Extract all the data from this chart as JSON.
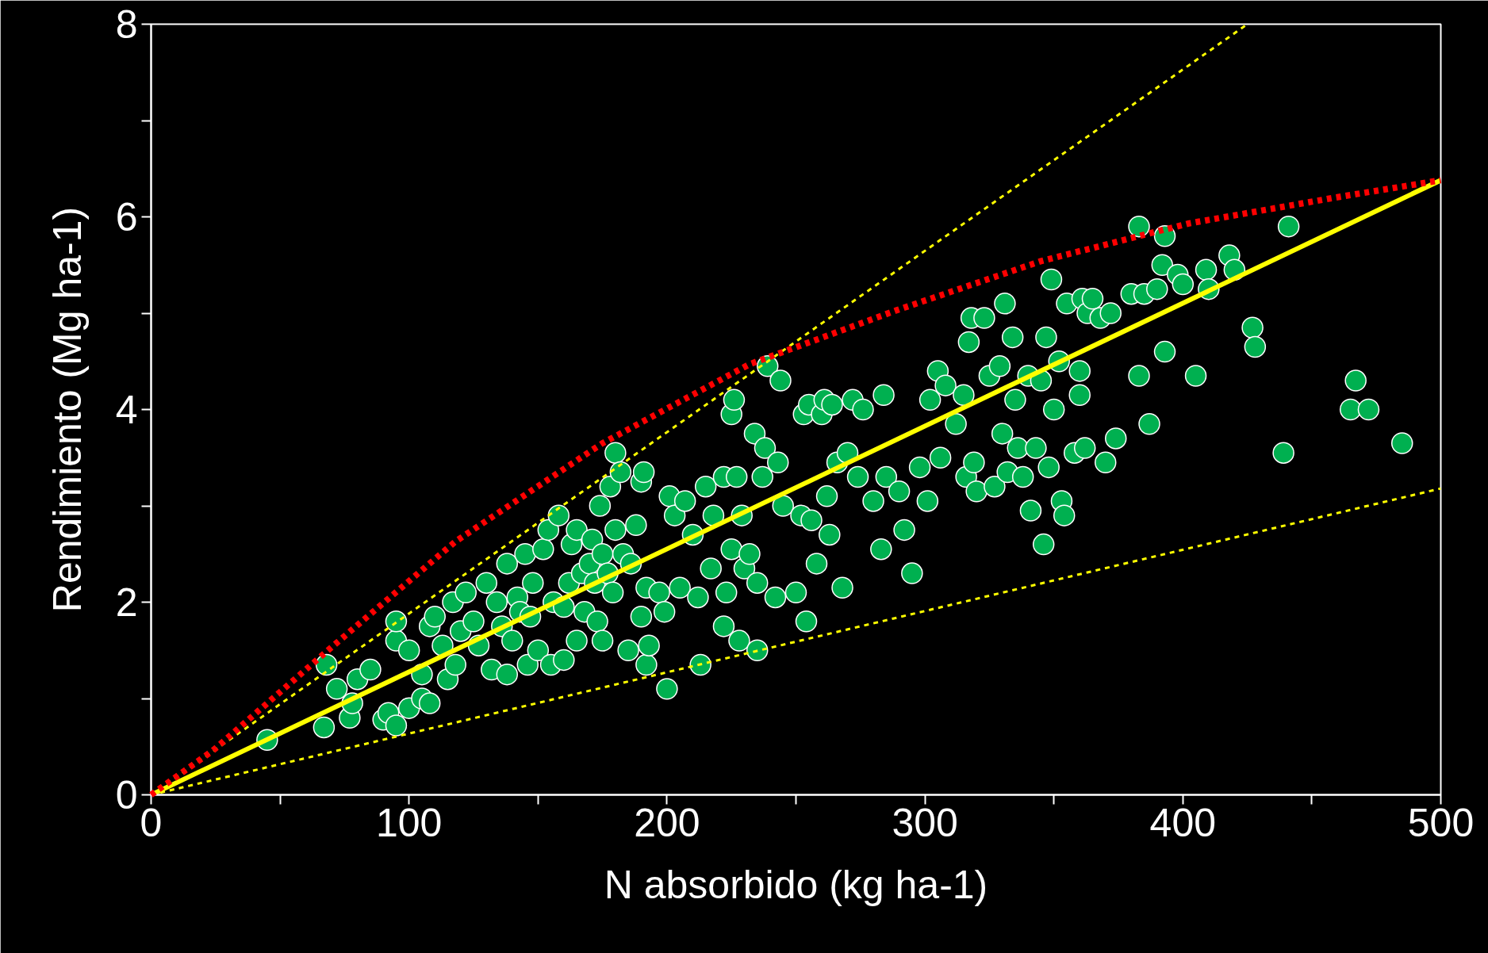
{
  "chart_data": {
    "type": "scatter",
    "xlabel": "N absorbido (kg ha-1)",
    "ylabel": "Rendimiento (Mg ha-1)",
    "xlim": [
      0,
      500
    ],
    "ylim": [
      0,
      8
    ],
    "xticks": [
      0,
      {
        "value": 50,
        "label": null
      },
      100,
      {
        "value": 150,
        "label": null
      },
      200,
      {
        "value": 250,
        "label": null
      },
      300,
      {
        "value": 350,
        "label": null
      },
      400,
      {
        "value": 450,
        "label": null
      },
      500
    ],
    "yticks": [
      0,
      {
        "value": 1,
        "label": null
      },
      2,
      {
        "value": 3,
        "label": null
      },
      4,
      {
        "value": 5,
        "label": null
      },
      6,
      {
        "value": 7,
        "label": null
      },
      8
    ],
    "grid": false,
    "series": [
      {
        "marker": "circle",
        "color": "#00b050",
        "x": [
          45,
          67,
          68,
          72,
          77,
          80,
          78,
          85,
          90,
          92,
          95,
          95,
          95,
          100,
          100,
          105,
          105,
          108,
          108,
          110,
          113,
          115,
          117,
          118,
          120,
          122,
          125,
          127,
          130,
          132,
          134,
          136,
          138,
          138,
          140,
          142,
          143,
          145,
          146,
          147,
          148,
          150,
          152,
          154,
          155,
          156,
          158,
          160,
          160,
          162,
          163,
          165,
          165,
          167,
          168,
          170,
          171,
          172,
          173,
          174,
          175,
          175,
          177,
          178,
          179,
          180,
          180,
          182,
          183,
          185,
          186,
          188,
          190,
          190,
          191,
          192,
          192,
          193,
          197,
          199,
          200,
          201,
          203,
          205,
          207,
          210,
          212,
          213,
          215,
          217,
          218,
          222,
          222,
          223,
          225,
          225,
          226,
          227,
          228,
          229,
          230,
          232,
          234,
          235,
          235,
          237,
          238,
          239,
          242,
          243,
          244,
          245,
          250,
          252,
          253,
          254,
          255,
          256,
          258,
          260,
          261,
          262,
          263,
          264,
          266,
          268,
          270,
          272,
          274,
          276,
          280,
          283,
          284,
          285,
          290,
          292,
          295,
          298,
          301,
          302,
          305,
          306,
          308,
          312,
          315,
          316,
          317,
          318,
          319,
          320,
          323,
          325,
          327,
          329,
          330,
          331,
          332,
          334,
          335,
          336,
          338,
          340,
          341,
          343,
          345,
          346,
          347,
          348,
          349,
          350,
          352,
          353,
          354,
          355,
          358,
          360,
          360,
          361,
          362,
          363,
          365,
          368,
          370,
          372,
          374,
          380,
          383,
          383,
          385,
          387,
          390,
          392,
          393,
          393,
          398,
          400,
          405,
          409,
          410,
          418,
          420,
          427,
          428,
          439,
          441,
          465,
          467,
          472,
          485
        ],
        "values": [
          0.57,
          0.7,
          1.35,
          1.1,
          0.8,
          1.2,
          0.95,
          1.3,
          0.78,
          0.85,
          0.72,
          1.6,
          1.8,
          1.5,
          0.9,
          1.0,
          1.25,
          0.95,
          1.75,
          1.85,
          1.55,
          1.2,
          2.0,
          1.35,
          1.7,
          2.1,
          1.8,
          1.55,
          2.2,
          1.3,
          2.0,
          1.75,
          2.4,
          1.25,
          1.6,
          2.05,
          1.9,
          2.5,
          1.35,
          1.85,
          2.2,
          1.5,
          2.55,
          2.75,
          1.35,
          2.0,
          2.9,
          1.95,
          1.4,
          2.2,
          2.6,
          2.75,
          1.6,
          2.3,
          1.9,
          2.4,
          2.65,
          2.2,
          1.8,
          3.0,
          2.5,
          1.6,
          2.3,
          3.2,
          2.1,
          2.75,
          3.55,
          3.35,
          2.5,
          1.5,
          2.4,
          2.8,
          1.85,
          3.25,
          3.35,
          1.35,
          2.15,
          1.55,
          2.1,
          1.9,
          1.1,
          3.1,
          2.9,
          2.15,
          3.05,
          2.7,
          2.05,
          1.35,
          3.2,
          2.35,
          2.9,
          3.3,
          1.75,
          2.1,
          2.55,
          3.95,
          4.1,
          3.3,
          1.6,
          2.9,
          2.35,
          2.5,
          3.75,
          1.5,
          2.2,
          3.3,
          3.6,
          4.45,
          2.05,
          3.45,
          4.3,
          3.0,
          2.1,
          2.9,
          3.95,
          1.8,
          4.05,
          2.85,
          2.4,
          3.95,
          4.1,
          3.1,
          2.7,
          4.05,
          3.45,
          2.15,
          3.55,
          4.1,
          3.3,
          4.0,
          3.05,
          2.55,
          4.15,
          3.3,
          3.15,
          2.75,
          2.3,
          3.4,
          3.05,
          4.1,
          4.4,
          3.5,
          4.25,
          3.85,
          4.15,
          3.3,
          4.7,
          4.95,
          3.45,
          3.15,
          4.95,
          4.35,
          3.2,
          4.45,
          3.75,
          5.1,
          3.35,
          4.75,
          4.1,
          3.6,
          3.3,
          4.35,
          2.95,
          3.6,
          4.3,
          2.6,
          4.75,
          3.4,
          5.35,
          4.0,
          4.5,
          3.05,
          2.9,
          5.1,
          3.55,
          4.15,
          4.4,
          5.15,
          3.6,
          5.0,
          5.15,
          4.95,
          3.45,
          5.0,
          3.7,
          5.2,
          4.35,
          5.9,
          5.2,
          3.85,
          5.25,
          5.5,
          4.6,
          5.8,
          5.4,
          5.3,
          4.35,
          5.45,
          5.25,
          5.6,
          5.45,
          4.85,
          4.65,
          3.55,
          5.9,
          4.0,
          4.3,
          4.0,
          3.65
        ]
      },
      {
        "type": "line",
        "line_style": "solid",
        "color": "#ffff00",
        "x": [
          0,
          500
        ],
        "values": [
          0,
          6.38
        ]
      },
      {
        "type": "line",
        "line_style": "dashed",
        "color": "#ffff00",
        "x": [
          0,
          425
        ],
        "values": [
          0,
          8
        ]
      },
      {
        "type": "line",
        "line_style": "dashed",
        "color": "#ffff00",
        "x": [
          0,
          500
        ],
        "values": [
          0,
          3.18
        ]
      },
      {
        "type": "line",
        "line_style": "dashed",
        "color": "#ff0000",
        "x": [
          0,
          24,
          69,
          118,
          175,
          232,
          289,
          345,
          402,
          459,
          500
        ],
        "values": [
          0,
          0.46,
          1.51,
          2.63,
          3.65,
          4.47,
          5.03,
          5.54,
          5.93,
          6.2,
          6.38
        ]
      }
    ]
  }
}
